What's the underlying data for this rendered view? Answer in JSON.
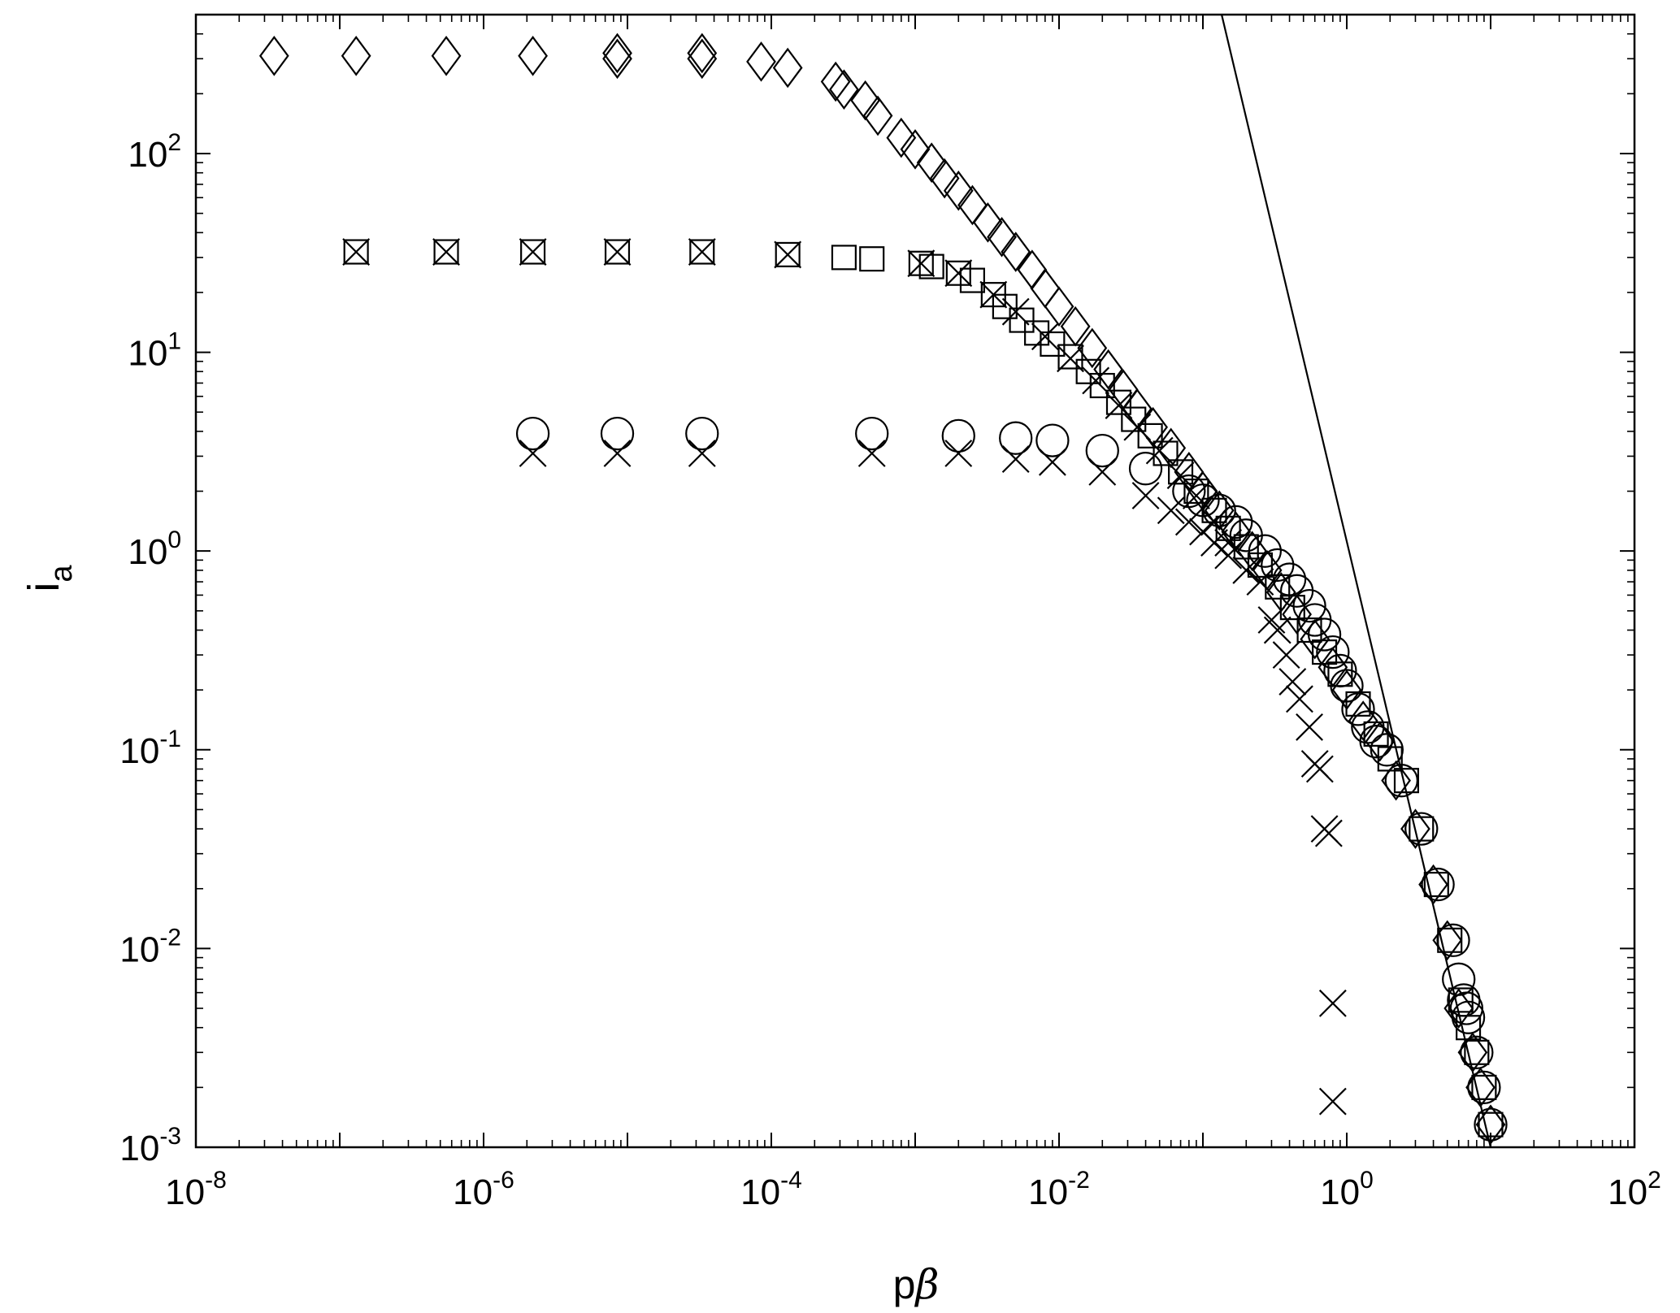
{
  "chart_data": {
    "type": "scatter",
    "title": "",
    "xlabel": "pβ",
    "xlabel_parts": {
      "main": "p",
      "symbol": "β"
    },
    "ylabel": "i_a",
    "ylabel_parts": {
      "main": "i",
      "sub": "a"
    },
    "x_scale": "log",
    "y_scale": "log",
    "xlim": [
      1e-08,
      100
    ],
    "ylim": [
      0.001,
      500
    ],
    "grid": false,
    "legend": "none",
    "x_ticks": [
      {
        "value": 1e-08,
        "base": "10",
        "exp": "-8"
      },
      {
        "value": 1e-06,
        "base": "10",
        "exp": "-6"
      },
      {
        "value": 0.0001,
        "base": "10",
        "exp": "-4"
      },
      {
        "value": 0.01,
        "base": "10",
        "exp": "-2"
      },
      {
        "value": 1,
        "base": "10",
        "exp": "0"
      },
      {
        "value": 100,
        "base": "10",
        "exp": "2"
      }
    ],
    "y_ticks": [
      {
        "value": 0.001,
        "base": "10",
        "exp": "-3"
      },
      {
        "value": 0.01,
        "base": "10",
        "exp": "-2"
      },
      {
        "value": 0.1,
        "base": "10",
        "exp": "-1"
      },
      {
        "value": 1,
        "base": "10",
        "exp": "0"
      },
      {
        "value": 10,
        "base": "10",
        "exp": "1"
      },
      {
        "value": 100,
        "base": "10",
        "exp": "2"
      }
    ],
    "series": [
      {
        "marker": "diamond",
        "points": [
          [
            3.5e-08,
            310
          ],
          [
            1.3e-07,
            310
          ],
          [
            5.5e-07,
            310
          ],
          [
            2.2e-06,
            310
          ],
          [
            8.5e-06,
            320
          ],
          [
            8.5e-06,
            300
          ],
          [
            3.3e-05,
            320
          ],
          [
            3.3e-05,
            300
          ],
          [
            8.5e-05,
            290
          ],
          [
            0.00013,
            270
          ],
          [
            0.00028,
            230
          ],
          [
            0.00032,
            210
          ],
          [
            0.00045,
            185
          ],
          [
            0.00055,
            155
          ],
          [
            0.0008,
            120
          ],
          [
            0.001,
            105
          ],
          [
            0.0013,
            90
          ],
          [
            0.0016,
            75
          ],
          [
            0.002,
            65
          ],
          [
            0.0025,
            55
          ],
          [
            0.0032,
            45
          ],
          [
            0.004,
            38
          ],
          [
            0.005,
            32
          ],
          [
            0.0065,
            26
          ],
          [
            0.008,
            21
          ],
          [
            0.01,
            17
          ],
          [
            0.013,
            13.5
          ],
          [
            0.017,
            10.5
          ],
          [
            0.022,
            8.2
          ],
          [
            0.028,
            6.5
          ],
          [
            0.035,
            5.2
          ],
          [
            0.045,
            4.2
          ],
          [
            0.06,
            3.3
          ],
          [
            0.08,
            2.5
          ],
          [
            0.1,
            2.0
          ],
          [
            0.13,
            1.6
          ],
          [
            0.17,
            1.25
          ],
          [
            0.22,
            1.0
          ],
          [
            0.28,
            0.8
          ],
          [
            0.35,
            0.62
          ],
          [
            0.45,
            0.48
          ],
          [
            0.6,
            0.36
          ],
          [
            0.8,
            0.26
          ],
          [
            1.0,
            0.2
          ],
          [
            1.3,
            0.14
          ],
          [
            1.7,
            0.11
          ],
          [
            2.2,
            0.07
          ],
          [
            3.0,
            0.04
          ],
          [
            4.0,
            0.021
          ],
          [
            5.0,
            0.011
          ],
          [
            6.0,
            0.005
          ],
          [
            7.5,
            0.003
          ],
          [
            8.5,
            0.002
          ],
          [
            10,
            0.0013
          ]
        ]
      },
      {
        "marker": "square",
        "points": [
          [
            1.3e-07,
            32
          ],
          [
            5.5e-07,
            32
          ],
          [
            2.2e-06,
            32
          ],
          [
            8.5e-06,
            32
          ],
          [
            3.3e-05,
            32
          ],
          [
            0.00013,
            31
          ],
          [
            0.00032,
            30
          ],
          [
            0.0005,
            29.5
          ],
          [
            0.0011,
            28
          ],
          [
            0.0013,
            27
          ],
          [
            0.002,
            25
          ],
          [
            0.0025,
            23
          ],
          [
            0.0035,
            19.5
          ],
          [
            0.0042,
            17
          ],
          [
            0.0055,
            14.5
          ],
          [
            0.007,
            12.5
          ],
          [
            0.009,
            11
          ],
          [
            0.012,
            9.5
          ],
          [
            0.016,
            8
          ],
          [
            0.02,
            6.8
          ],
          [
            0.026,
            5.6
          ],
          [
            0.033,
            4.6
          ],
          [
            0.043,
            3.8
          ],
          [
            0.055,
            3.1
          ],
          [
            0.07,
            2.5
          ],
          [
            0.09,
            2.0
          ],
          [
            0.12,
            1.6
          ],
          [
            0.15,
            1.3
          ],
          [
            0.2,
            1.05
          ],
          [
            0.25,
            0.85
          ],
          [
            0.33,
            0.66
          ],
          [
            0.42,
            0.52
          ],
          [
            0.55,
            0.4
          ],
          [
            0.7,
            0.31
          ],
          [
            0.9,
            0.24
          ],
          [
            1.2,
            0.17
          ],
          [
            1.6,
            0.12
          ],
          [
            2.0,
            0.09
          ],
          [
            2.6,
            0.07
          ],
          [
            3.3,
            0.04
          ],
          [
            4.2,
            0.021
          ],
          [
            5.2,
            0.011
          ],
          [
            6.2,
            0.0055
          ],
          [
            7,
            0.004
          ],
          [
            8,
            0.003
          ],
          [
            9,
            0.002
          ],
          [
            10,
            0.0013
          ]
        ]
      },
      {
        "marker": "circle",
        "points": [
          [
            2.2e-06,
            3.9
          ],
          [
            8.5e-06,
            3.9
          ],
          [
            3.3e-05,
            3.9
          ],
          [
            0.0005,
            3.9
          ],
          [
            0.002,
            3.8
          ],
          [
            0.005,
            3.7
          ],
          [
            0.009,
            3.6
          ],
          [
            0.02,
            3.2
          ],
          [
            0.04,
            2.6
          ],
          [
            0.08,
            2.0
          ],
          [
            0.1,
            1.8
          ],
          [
            0.13,
            1.6
          ],
          [
            0.17,
            1.4
          ],
          [
            0.2,
            1.2
          ],
          [
            0.27,
            1.0
          ],
          [
            0.33,
            0.85
          ],
          [
            0.4,
            0.72
          ],
          [
            0.45,
            0.63
          ],
          [
            0.55,
            0.53
          ],
          [
            0.6,
            0.45
          ],
          [
            0.7,
            0.38
          ],
          [
            0.8,
            0.31
          ],
          [
            0.9,
            0.25
          ],
          [
            1.0,
            0.21
          ],
          [
            1.2,
            0.16
          ],
          [
            1.4,
            0.13
          ],
          [
            1.6,
            0.11
          ],
          [
            1.9,
            0.1
          ],
          [
            2.4,
            0.07
          ],
          [
            3.3,
            0.04
          ],
          [
            4.3,
            0.021
          ],
          [
            5.5,
            0.011
          ],
          [
            6.0,
            0.007
          ],
          [
            6.5,
            0.0055
          ],
          [
            6.8,
            0.005
          ],
          [
            7.0,
            0.0045
          ],
          [
            8.0,
            0.003
          ],
          [
            9.0,
            0.002
          ],
          [
            10,
            0.0013
          ]
        ]
      },
      {
        "marker": "cross",
        "points": [
          [
            1.3e-07,
            32
          ],
          [
            5.5e-07,
            32
          ],
          [
            2.2e-06,
            32
          ],
          [
            8.5e-06,
            32
          ],
          [
            3.3e-05,
            32
          ],
          [
            0.00013,
            31
          ],
          [
            0.0011,
            28
          ],
          [
            0.002,
            25
          ],
          [
            0.0035,
            19.5
          ],
          [
            0.005,
            16
          ],
          [
            0.008,
            12
          ],
          [
            0.012,
            9.3
          ],
          [
            0.018,
            7.2
          ],
          [
            0.026,
            5.4
          ],
          [
            0.035,
            4.2
          ],
          [
            0.05,
            3.2
          ],
          [
            0.07,
            2.4
          ],
          [
            0.09,
            1.9
          ],
          [
            0.12,
            1.4
          ],
          [
            0.15,
            1.1
          ],
          [
            2.2e-06,
            3.1
          ],
          [
            8.5e-06,
            3.1
          ],
          [
            3.3e-05,
            3.1
          ],
          [
            0.0005,
            3.1
          ],
          [
            0.002,
            3.1
          ],
          [
            0.005,
            2.9
          ],
          [
            0.009,
            2.8
          ],
          [
            0.02,
            2.5
          ],
          [
            0.04,
            1.9
          ],
          [
            0.06,
            1.6
          ],
          [
            0.08,
            1.4
          ],
          [
            0.1,
            1.25
          ],
          [
            0.12,
            1.1
          ],
          [
            0.15,
            0.95
          ],
          [
            0.2,
            0.8
          ],
          [
            0.25,
            0.7
          ],
          [
            0.3,
            0.45
          ],
          [
            0.33,
            0.4
          ],
          [
            0.38,
            0.3
          ],
          [
            0.42,
            0.22
          ],
          [
            0.47,
            0.18
          ],
          [
            0.55,
            0.13
          ],
          [
            0.6,
            0.085
          ],
          [
            0.65,
            0.08
          ],
          [
            0.7,
            0.04
          ],
          [
            0.75,
            0.038
          ],
          [
            0.8,
            0.0053
          ],
          [
            0.8,
            0.0017
          ]
        ]
      }
    ],
    "reference_line": {
      "points": [
        [
          0.135,
          500
        ],
        [
          10,
          0.001
        ]
      ]
    }
  }
}
